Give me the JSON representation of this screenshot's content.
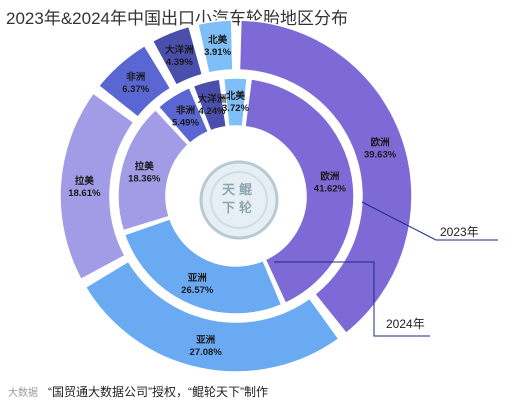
{
  "title": "2023年&2024年中国出口小汽车轮胎地区分布",
  "footer": {
    "watermark": "大数据",
    "credit": "“国贸通大数据公司”授权，“鲲轮天下”制作"
  },
  "logo_text": [
    "天鲲",
    "下轮"
  ],
  "colors": {
    "欧洲": "#7d6ad6",
    "亚洲": "#6aaaf2",
    "拉美": "#a29be6",
    "非洲": "#5a66d2",
    "大洋洲": "#4a4fae",
    "北美": "#7fbff8",
    "callout_line": "#1a2b86"
  },
  "chart_data": {
    "type": "pie",
    "title": "2023年&2024年中国出口小汽车轮胎地区分布",
    "series": [
      {
        "name": "2023年",
        "ring": "inner",
        "categories": [
          "北美",
          "欧洲",
          "亚洲",
          "拉美",
          "非洲",
          "大洋洲"
        ],
        "values": [
          3.72,
          41.62,
          26.57,
          18.36,
          5.49,
          4.24
        ],
        "labels": [
          "3.72%",
          "41.62%",
          "26.57%",
          "18.36%",
          "5.49%",
          "4.24%"
        ]
      },
      {
        "name": "2024年",
        "ring": "outer",
        "categories": [
          "北美",
          "欧洲",
          "亚洲",
          "拉美",
          "非洲",
          "大洋洲"
        ],
        "values": [
          3.91,
          39.63,
          27.08,
          18.61,
          6.37,
          4.39
        ],
        "labels": [
          "3.91%",
          "39.63%",
          "27.08%",
          "18.61%",
          "6.37%",
          "4.39%"
        ]
      }
    ]
  }
}
